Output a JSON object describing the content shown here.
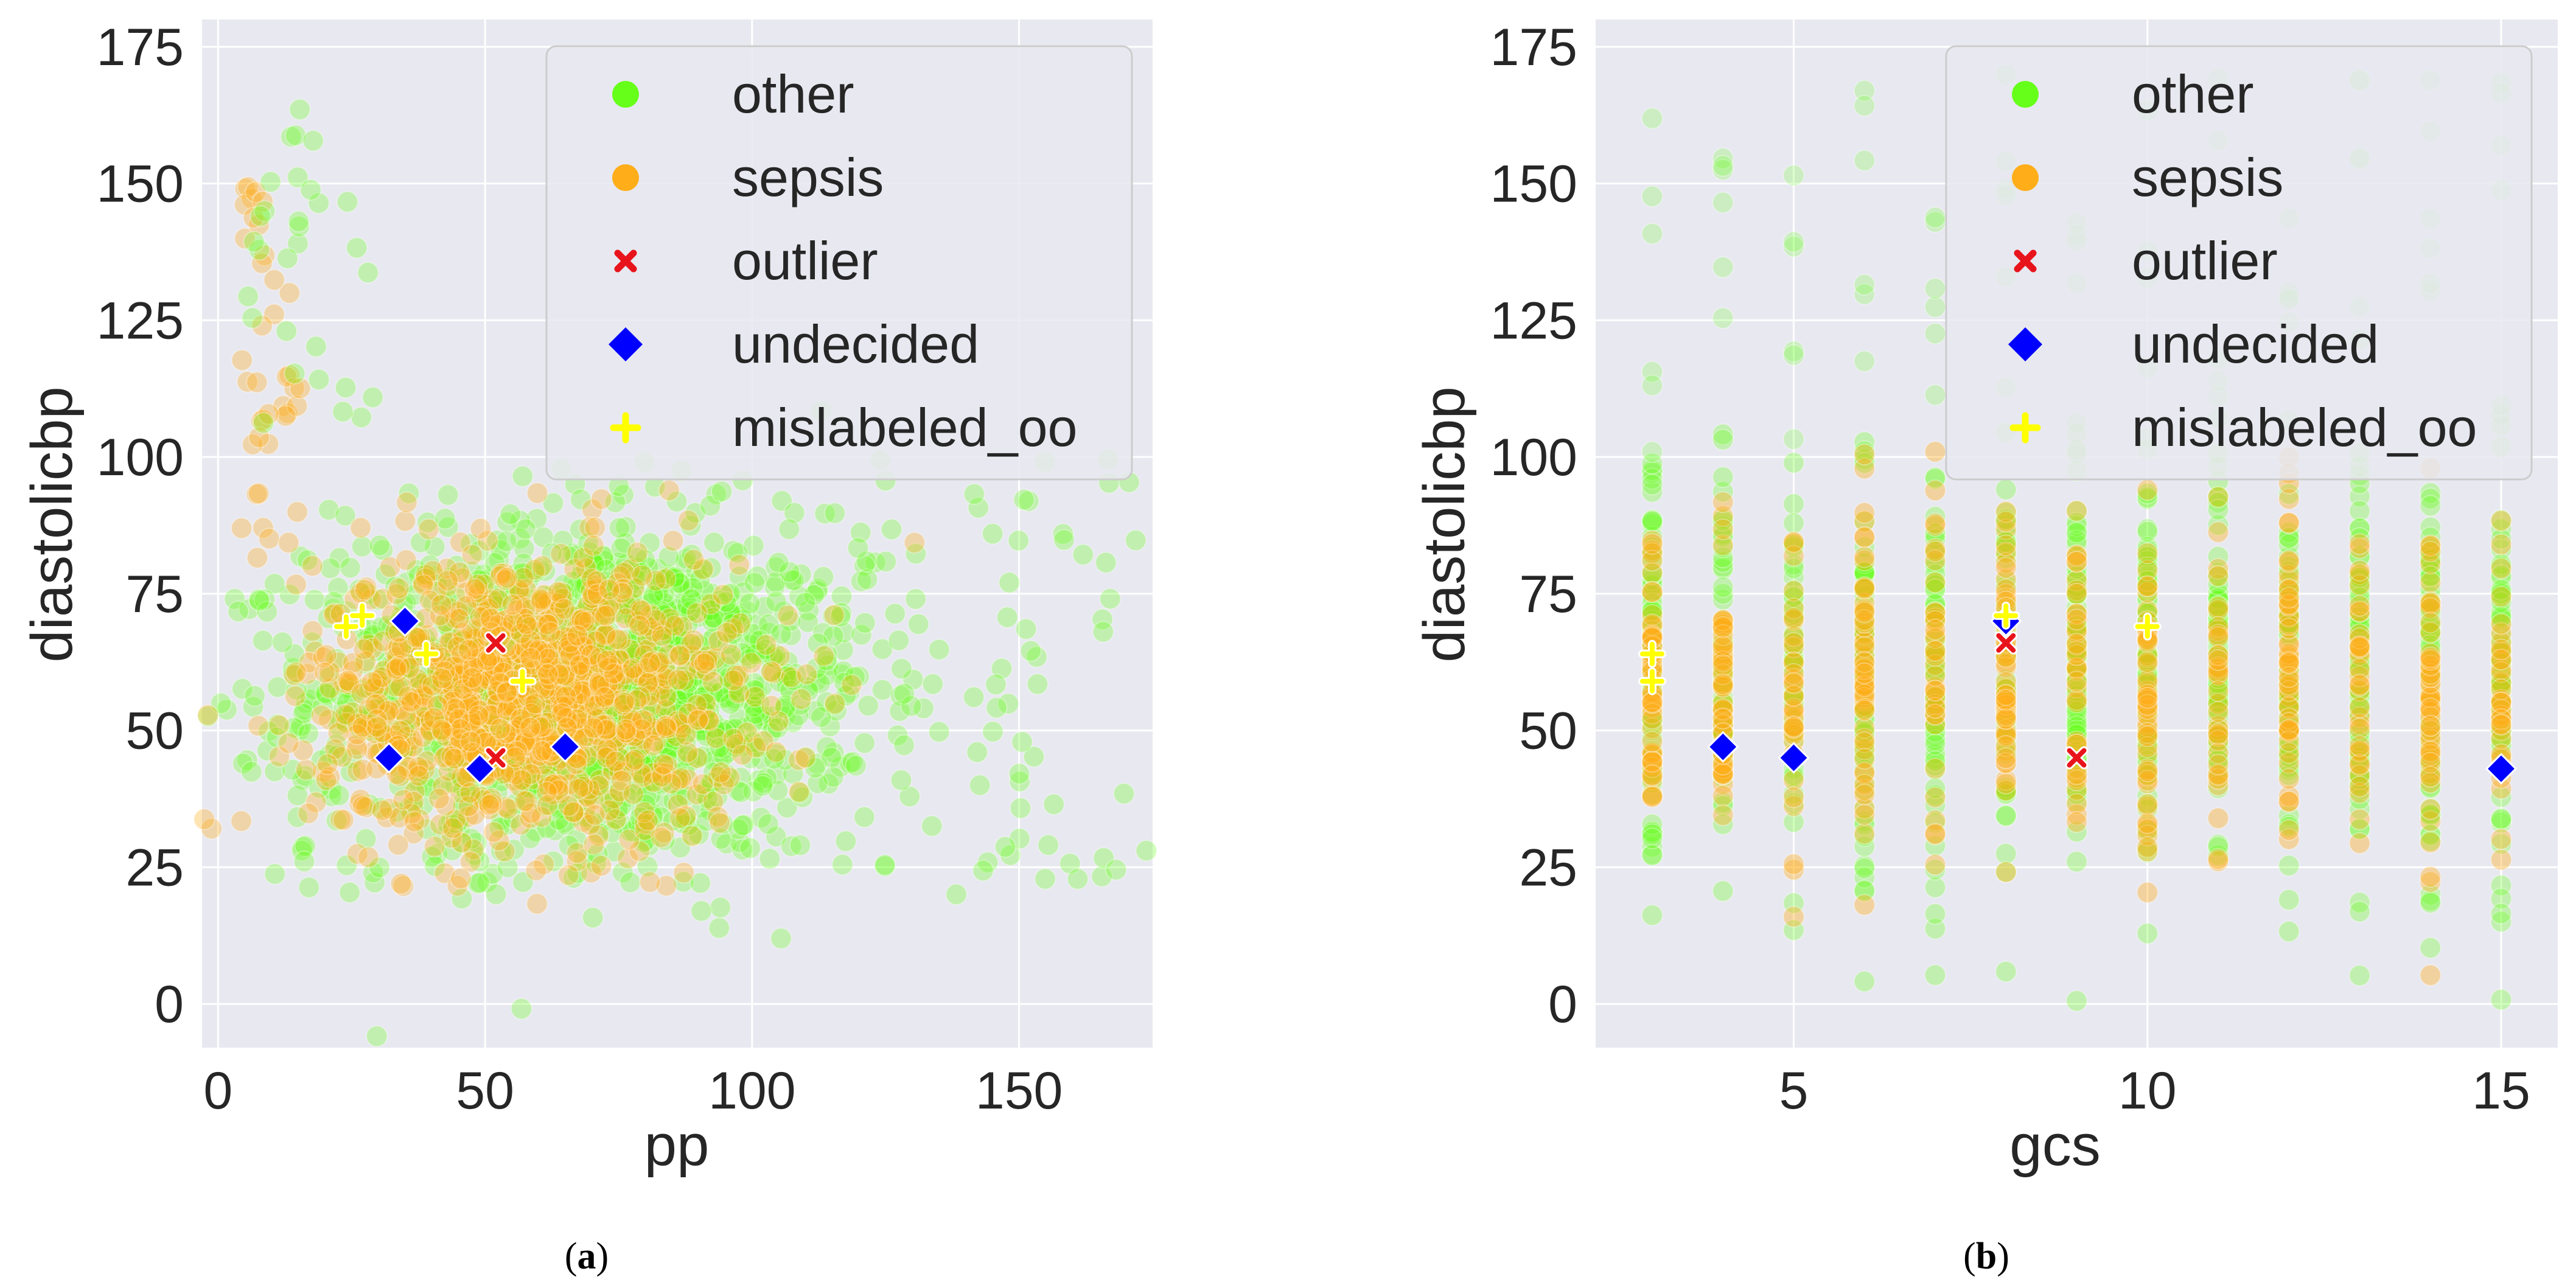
{
  "chart_data": [
    {
      "type": "scatter",
      "panel_caption": "(a)",
      "xlabel": "pp",
      "ylabel": "diastolicbp",
      "xlim": [
        -3,
        175
      ],
      "ylim": [
        -8,
        180
      ],
      "xticks": [
        0,
        50,
        100,
        150
      ],
      "yticks": [
        0,
        25,
        50,
        75,
        100,
        125,
        150,
        175
      ],
      "grid": true,
      "legend_position": "top-right",
      "legend": [
        "other",
        "sepsis",
        "outlier",
        "undecided",
        "mislabeled_oo"
      ],
      "colors": {
        "other": "#66ff1a",
        "sepsis": "#ffae19",
        "outlier": "#e8141c",
        "undecided": "#0000ff",
        "mislabeled_oo": "#ffff00",
        "background": "#e8e8f0",
        "grid": "#ffffff"
      },
      "series": [
        {
          "name": "outlier",
          "marker": "x",
          "points": [
            [
              52,
              66
            ],
            [
              52,
              45
            ]
          ]
        },
        {
          "name": "undecided",
          "marker": "diamond",
          "points": [
            [
              35,
              70
            ],
            [
              32,
              45
            ],
            [
              49,
              43
            ],
            [
              65,
              47
            ]
          ]
        },
        {
          "name": "mislabeled_oo",
          "marker": "plus",
          "points": [
            [
              24,
              69
            ],
            [
              27,
              71
            ],
            [
              39,
              64
            ],
            [
              57,
              59
            ]
          ]
        }
      ],
      "notes": "Dense clouds of 'other' and 'sepsis' points centred near pp 40-90, diastolicbp 30-90"
    },
    {
      "type": "scatter",
      "panel_caption": "(b)",
      "xlabel": "gcs",
      "ylabel": "diastolicbp",
      "xlim": [
        2.2,
        15.8
      ],
      "ylim": [
        -8,
        180
      ],
      "xticks": [
        5,
        10,
        15
      ],
      "yticks": [
        0,
        25,
        50,
        75,
        100,
        125,
        150,
        175
      ],
      "grid": true,
      "legend_position": "top-right",
      "legend": [
        "other",
        "sepsis",
        "outlier",
        "undecided",
        "mislabeled_oo"
      ],
      "colors": {
        "other": "#66ff1a",
        "sepsis": "#ffae19",
        "outlier": "#e8141c",
        "undecided": "#0000ff",
        "mislabeled_oo": "#ffff00",
        "background": "#e8e8f0",
        "grid": "#ffffff"
      },
      "series": [
        {
          "name": "outlier",
          "marker": "x",
          "points": [
            [
              8,
              66
            ],
            [
              9,
              45
            ]
          ]
        },
        {
          "name": "undecided",
          "marker": "diamond",
          "points": [
            [
              8,
              70
            ],
            [
              4,
              47
            ],
            [
              5,
              45
            ],
            [
              15,
              43
            ]
          ]
        },
        {
          "name": "mislabeled_oo",
          "marker": "plus",
          "points": [
            [
              3,
              64
            ],
            [
              3,
              59
            ],
            [
              8,
              71
            ],
            [
              10,
              69
            ]
          ]
        }
      ],
      "notes": "Points stacked in vertical columns at integer gcs values 3-15"
    }
  ]
}
